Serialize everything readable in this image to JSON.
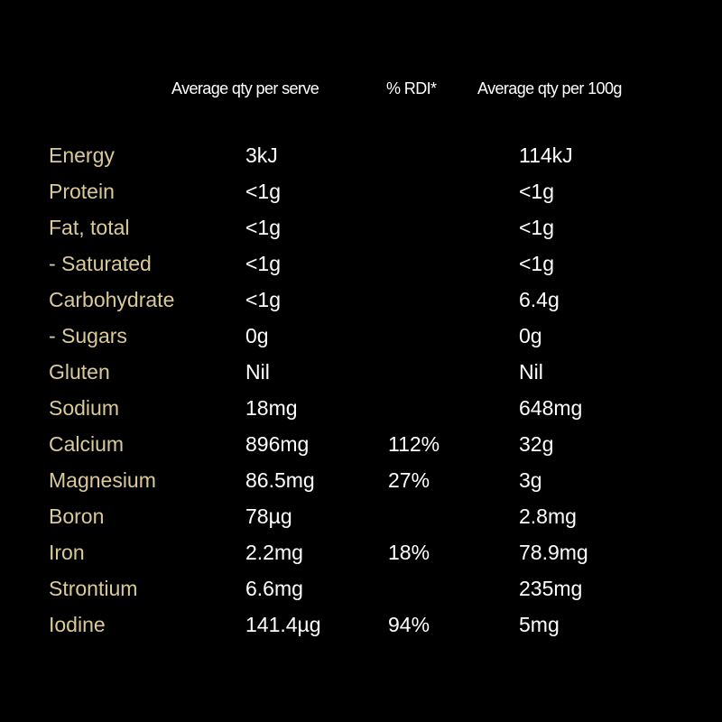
{
  "colors": {
    "background": "#000000",
    "nutrient_label": "#d9c99b",
    "value_text": "#ffffff"
  },
  "header": {
    "per_serve": "Average qty per serve",
    "rdi": "% RDI*",
    "per_100g": "Average qty per 100g"
  },
  "rows": [
    {
      "name": "Energy",
      "serve": "3kJ",
      "rdi": "",
      "per100g": "114kJ"
    },
    {
      "name": "Protein",
      "serve": "<1g",
      "rdi": "",
      "per100g": "<1g"
    },
    {
      "name": "Fat, total",
      "serve": "<1g",
      "rdi": "",
      "per100g": "<1g"
    },
    {
      "name": "- Saturated",
      "serve": "<1g",
      "rdi": "",
      "per100g": "<1g"
    },
    {
      "name": "Carbohydrate",
      "serve": "<1g",
      "rdi": "",
      "per100g": "6.4g"
    },
    {
      "name": "- Sugars",
      "serve": "0g",
      "rdi": "",
      "per100g": "0g"
    },
    {
      "name": "Gluten",
      "serve": "Nil",
      "rdi": "",
      "per100g": "Nil"
    },
    {
      "name": "Sodium",
      "serve": "18mg",
      "rdi": "",
      "per100g": "648mg"
    },
    {
      "name": "Calcium",
      "serve": "896mg",
      "rdi": "112%",
      "per100g": "32g"
    },
    {
      "name": "Magnesium",
      "serve": "86.5mg",
      "rdi": "27%",
      "per100g": "3g"
    },
    {
      "name": "Boron",
      "serve": "78µg",
      "rdi": "",
      "per100g": "2.8mg"
    },
    {
      "name": "Iron",
      "serve": "2.2mg",
      "rdi": "18%",
      "per100g": "78.9mg"
    },
    {
      "name": "Strontium",
      "serve": "6.6mg",
      "rdi": "",
      "per100g": "235mg"
    },
    {
      "name": "Iodine",
      "serve": "141.4µg",
      "rdi": "94%",
      "per100g": "5mg"
    }
  ]
}
